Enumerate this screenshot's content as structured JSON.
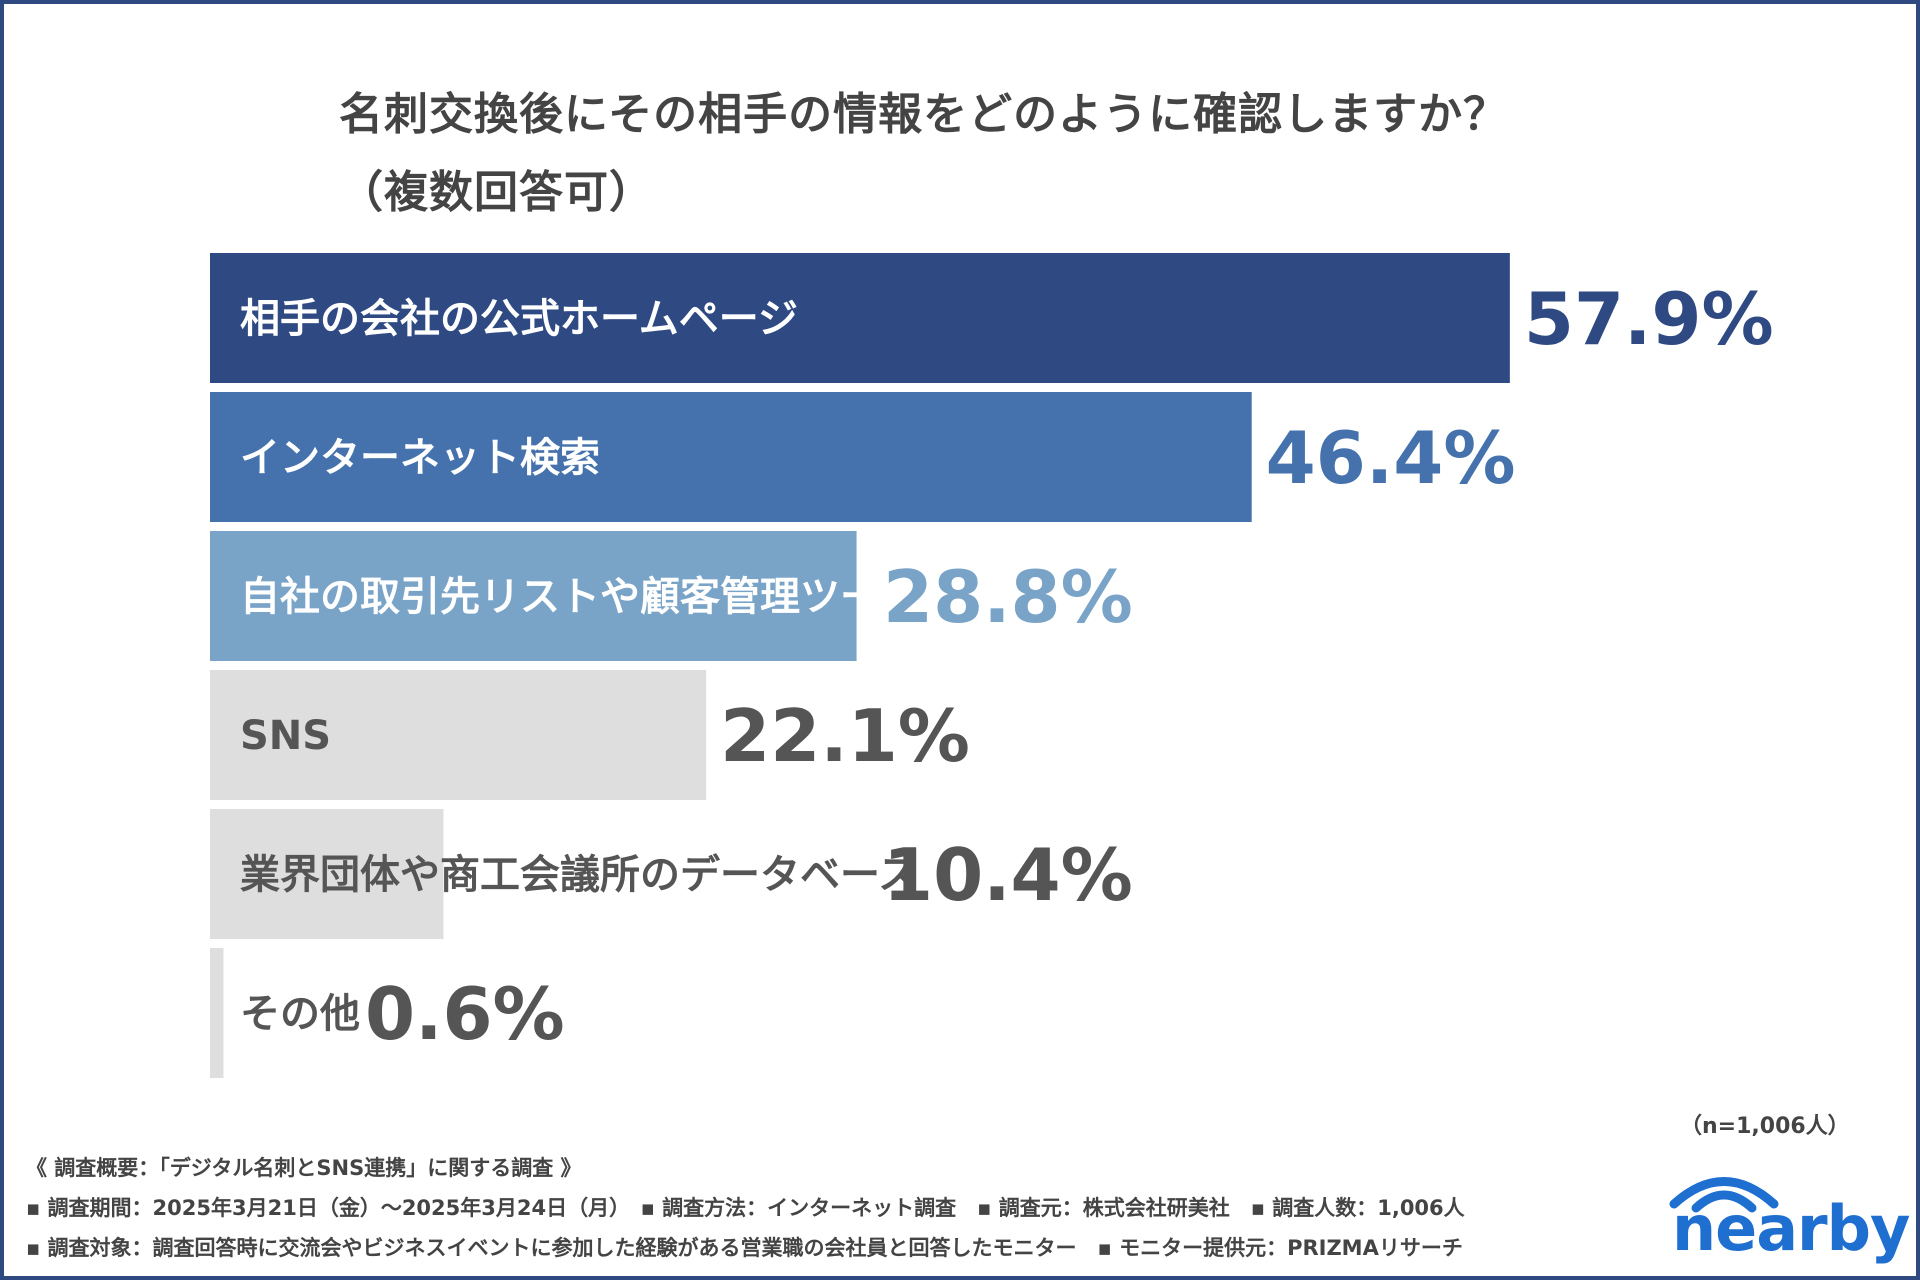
{
  "title": {
    "line1": "名刺交換後にその相手の情報をどのように確認しますか？",
    "line2": "（複数回答可）"
  },
  "chart_data": {
    "type": "bar",
    "orientation": "horizontal",
    "categories": [
      "相手の会社の公式ホームページ",
      "インターネット検索",
      "自社の取引先リストや顧客管理ツール",
      "SNS",
      "業界団体や商工会議所のデータベース",
      "その他"
    ],
    "values": [
      57.9,
      46.4,
      28.8,
      22.1,
      10.4,
      0.6
    ],
    "value_labels": [
      "57.9%",
      "46.4%",
      "28.8%",
      "22.1%",
      "10.4%",
      "0.6%"
    ],
    "unit": "%",
    "xlim": [
      0,
      100
    ],
    "grid": false,
    "legend": "none",
    "colors": [
      "#2f4a83",
      "#4572ad",
      "#7aa3c8",
      "#dedede",
      "#dedede",
      "#dedede"
    ],
    "label_colors": [
      "#ffffff",
      "#ffffff",
      "#ffffff",
      "#555555",
      "#555555",
      "#555555"
    ],
    "value_colors": [
      "#2f4a83",
      "#4572ad",
      "#7aa3c8",
      "#555555",
      "#555555",
      "#555555"
    ]
  },
  "sample_size": "（n=1,006人）",
  "footer": {
    "line1": "《 調査概要：「デジタル名刺とSNS連携」に関する調査 》",
    "line2": "▪ 調査期間：2025年3月21日（金）～2025年3月24日（月）　▪ 調査方法：インターネット調査　▪ 調査元：株式会社研美社　▪ 調査人数：1,006人",
    "line3": "▪ 調査対象：調査回答時に交流会やビジネスイベントに参加した経験がある営業職の会社員と回答したモニター　▪ モニター提供元：PRIZMAリサーチ"
  },
  "logo": {
    "text": "nearby",
    "color": "#1f6fd1"
  }
}
